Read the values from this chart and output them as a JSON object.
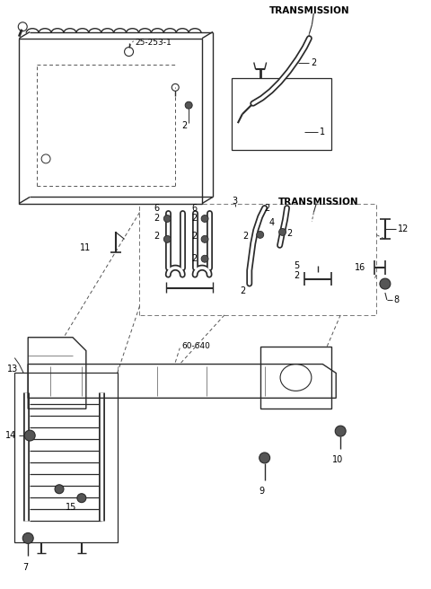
{
  "bg_color": "#ffffff",
  "lc": "#2a2a2a",
  "fig_width": 4.8,
  "fig_height": 6.56,
  "dpi": 100
}
